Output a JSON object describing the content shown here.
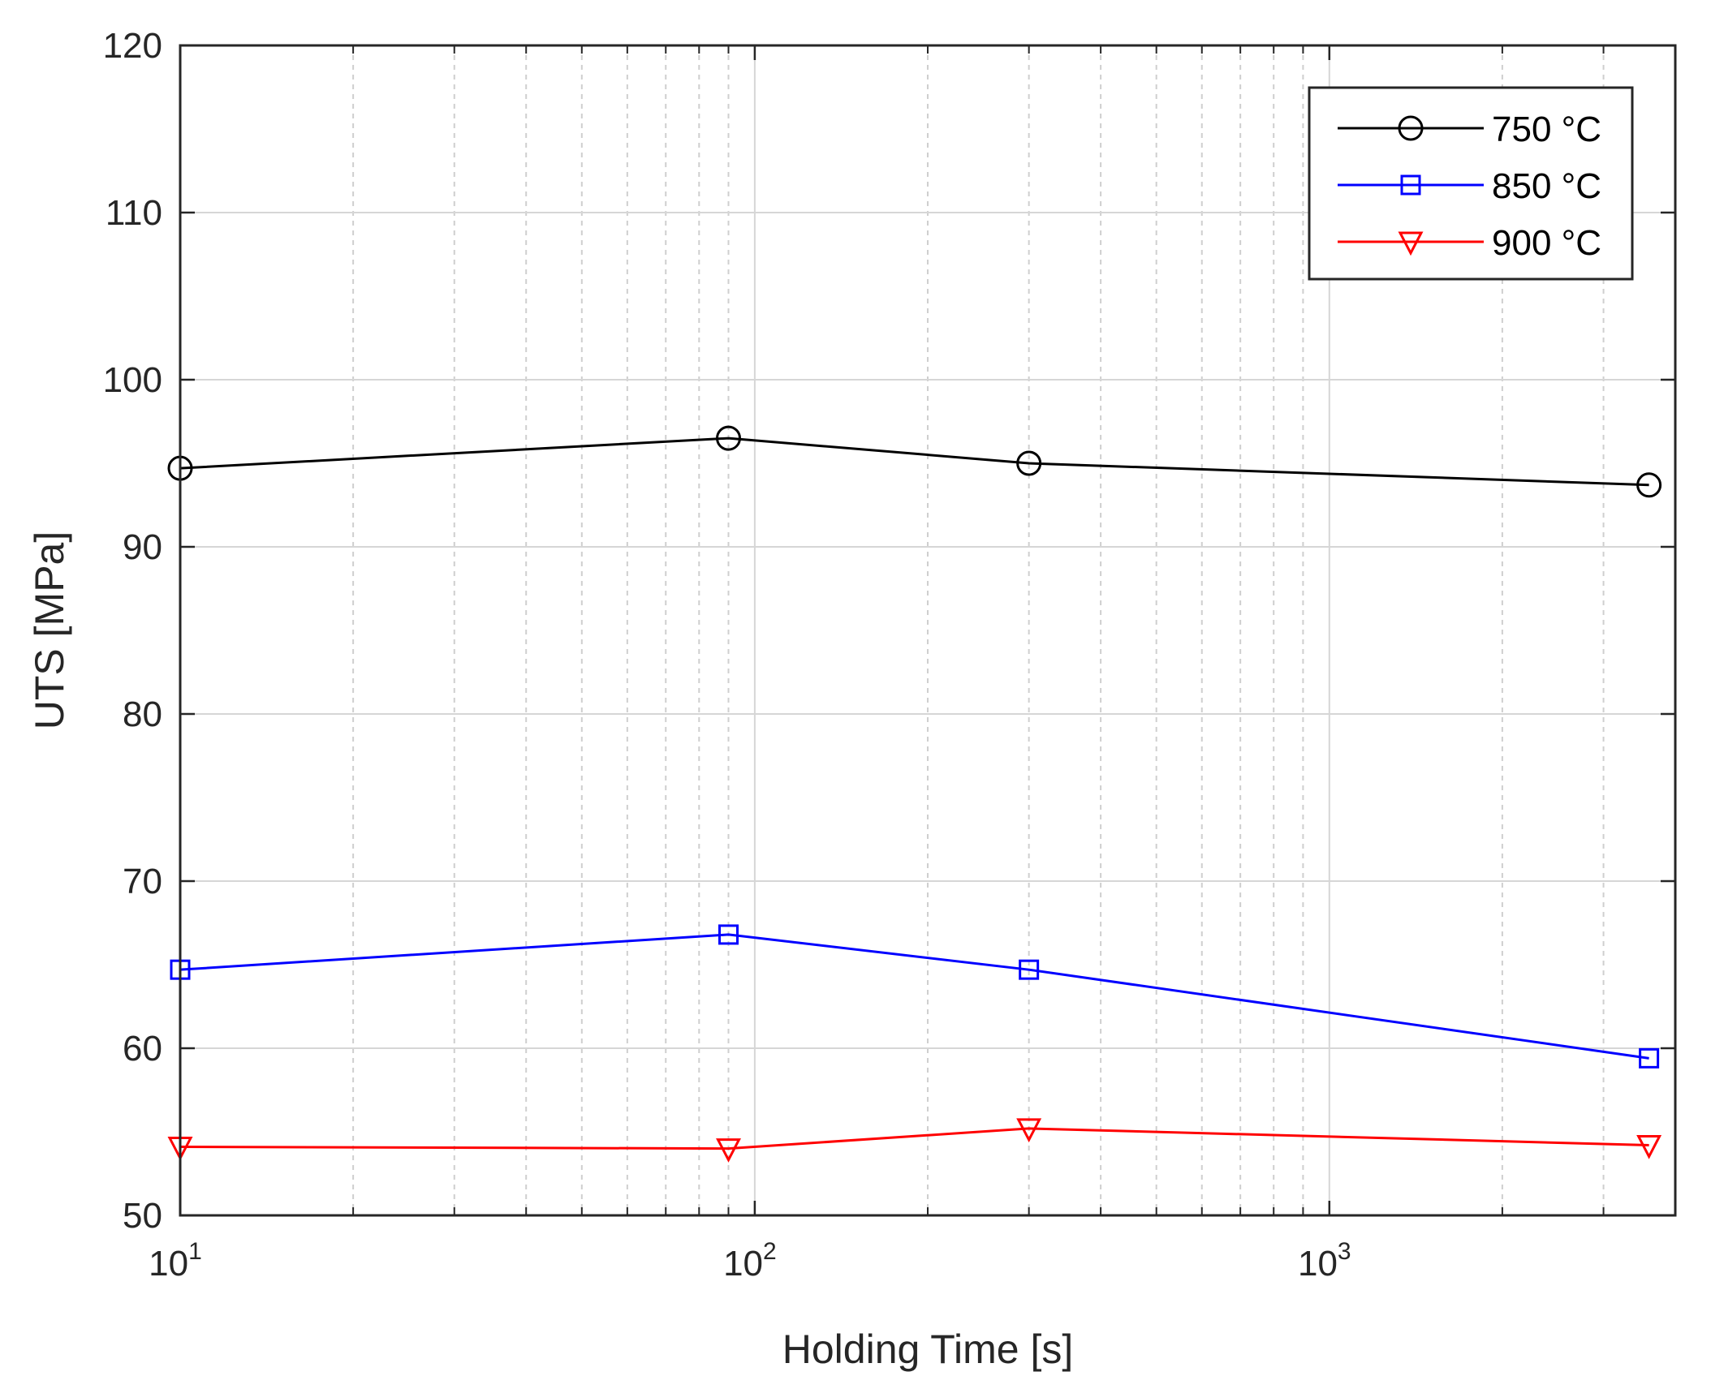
{
  "chart_data": {
    "type": "line",
    "title": "",
    "xlabel": "Holding Time [s]",
    "ylabel": "UTS [MPa]",
    "xscale": "log",
    "xlim": [
      10,
      4000
    ],
    "ylim": [
      50,
      120
    ],
    "yticks": [
      50,
      60,
      70,
      80,
      90,
      100,
      110,
      120
    ],
    "xticks": [
      {
        "value": 10,
        "base": "10",
        "exp": "1"
      },
      {
        "value": 100,
        "base": "10",
        "exp": "2"
      },
      {
        "value": 1000,
        "base": "10",
        "exp": "3"
      }
    ],
    "grid": true,
    "legend_position": "top-right",
    "series": [
      {
        "name": "750 °C",
        "color": "#000000",
        "marker": "circle",
        "x": [
          10,
          90,
          300,
          3600
        ],
        "y": [
          94.7,
          96.5,
          95.0,
          93.7
        ]
      },
      {
        "name": "850 °C",
        "color": "#0000ff",
        "marker": "square",
        "x": [
          10,
          90,
          300,
          3600
        ],
        "y": [
          64.7,
          66.8,
          64.7,
          59.4
        ]
      },
      {
        "name": "900 °C",
        "color": "#ff0000",
        "marker": "triangle-down",
        "x": [
          10,
          90,
          300,
          3600
        ],
        "y": [
          54.1,
          54.0,
          55.2,
          54.2
        ]
      }
    ]
  }
}
